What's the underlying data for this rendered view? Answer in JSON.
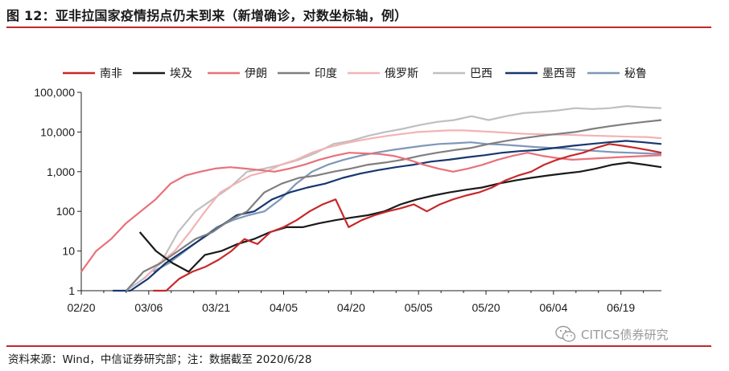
{
  "title": "图 12：亚非拉国家疫情拐点仍未到来（新增确诊，对数坐标轴，例）",
  "source": "资料来源：Wind，中信证券研究部；注：数据截至 2020/6/28",
  "watermark": "CITICS债券研究",
  "icons": {
    "watermark": "wechat-icon"
  },
  "chart_data": {
    "type": "line",
    "yscale": "log",
    "ylim": [
      1,
      100000
    ],
    "yticks": [
      1,
      10,
      100,
      1000,
      10000,
      100000
    ],
    "ytick_labels": [
      "1",
      "10",
      "100",
      "1,000",
      "10,000",
      "100,000"
    ],
    "x_start": "2020-02-20",
    "x_end": "2020-06-28",
    "xtick_labels": [
      "02/20",
      "03/06",
      "03/21",
      "04/05",
      "04/20",
      "05/05",
      "05/20",
      "06/04",
      "06/19"
    ],
    "legend_position": "top",
    "grid": false,
    "series": [
      {
        "name": "南非",
        "color": "#c8282a",
        "start": "2020-03-07",
        "values": [
          1,
          1,
          2,
          3,
          4,
          6,
          10,
          20,
          15,
          30,
          40,
          60,
          100,
          150,
          200,
          40,
          60,
          80,
          100,
          120,
          150,
          100,
          150,
          200,
          250,
          300,
          400,
          600,
          800,
          1000,
          1500,
          2000,
          2500,
          3000,
          4000,
          5000,
          4500,
          4000,
          3500,
          3000
        ]
      },
      {
        "name": "埃及",
        "color": "#1a1a1a",
        "start": "2020-03-04",
        "values": [
          30,
          10,
          5,
          3,
          8,
          10,
          15,
          20,
          30,
          40,
          40,
          50,
          60,
          70,
          80,
          100,
          150,
          200,
          250,
          300,
          350,
          400,
          500,
          600,
          700,
          800,
          900,
          1000,
          1200,
          1500,
          1700,
          1500,
          1300
        ]
      },
      {
        "name": "伊朗",
        "color": "#e8717a",
        "start": "2020-02-20",
        "values": [
          3,
          10,
          20,
          50,
          100,
          200,
          500,
          800,
          1000,
          1200,
          1300,
          1200,
          1100,
          1000,
          1200,
          1500,
          2000,
          2500,
          3000,
          2900,
          2800,
          2500,
          2000,
          1500,
          1200,
          1000,
          1200,
          1500,
          2000,
          2500,
          3000,
          2500,
          2200,
          2000,
          2100,
          2200,
          2300,
          2400,
          2500,
          2600
        ]
      },
      {
        "name": "印度",
        "color": "#7f7f7f",
        "start": "2020-03-01",
        "values": [
          1,
          3,
          5,
          10,
          20,
          30,
          60,
          100,
          300,
          500,
          700,
          800,
          1000,
          1200,
          1500,
          1700,
          2000,
          2500,
          3000,
          3500,
          4000,
          5000,
          6000,
          7000,
          8000,
          9000,
          10000,
          12000,
          14000,
          16000,
          18000,
          20000
        ]
      },
      {
        "name": "俄罗斯",
        "color": "#f2b3b5",
        "start": "2020-03-05",
        "values": [
          2,
          5,
          10,
          30,
          100,
          300,
          500,
          800,
          1000,
          1500,
          2000,
          3000,
          4000,
          5000,
          6000,
          7000,
          8000,
          9000,
          10000,
          10500,
          11000,
          11000,
          10500,
          10000,
          9500,
          9000,
          8800,
          8600,
          8500,
          8200,
          8000,
          7800,
          7600,
          7500,
          7000
        ]
      },
      {
        "name": "巴西",
        "color": "#bfbfbf",
        "start": "2020-03-01",
        "values": [
          1,
          2,
          5,
          30,
          100,
          200,
          400,
          1000,
          1200,
          1500,
          2000,
          3000,
          5000,
          6000,
          8000,
          10000,
          12000,
          15000,
          18000,
          20000,
          25000,
          20000,
          25000,
          30000,
          32000,
          35000,
          40000,
          38000,
          40000,
          45000,
          42000,
          40000
        ]
      },
      {
        "name": "墨西哥",
        "color": "#17376f",
        "start": "2020-02-27",
        "values": [
          1,
          1,
          2,
          5,
          10,
          20,
          40,
          80,
          100,
          200,
          300,
          400,
          500,
          700,
          900,
          1100,
          1300,
          1500,
          1800,
          2000,
          2300,
          2600,
          3000,
          3300,
          3500,
          4000,
          4500,
          5000,
          5500,
          6000,
          5500,
          5000
        ]
      },
      {
        "name": "秘鲁",
        "color": "#7f97b8",
        "start": "2020-03-07",
        "values": [
          3,
          5,
          10,
          20,
          40,
          60,
          80,
          100,
          200,
          500,
          1000,
          1500,
          2000,
          2500,
          3000,
          3500,
          4000,
          4500,
          5000,
          5200,
          5500,
          5000,
          4800,
          4500,
          4200,
          4000,
          3800,
          3500,
          3300,
          3100,
          3000,
          2900,
          2800
        ]
      }
    ]
  }
}
